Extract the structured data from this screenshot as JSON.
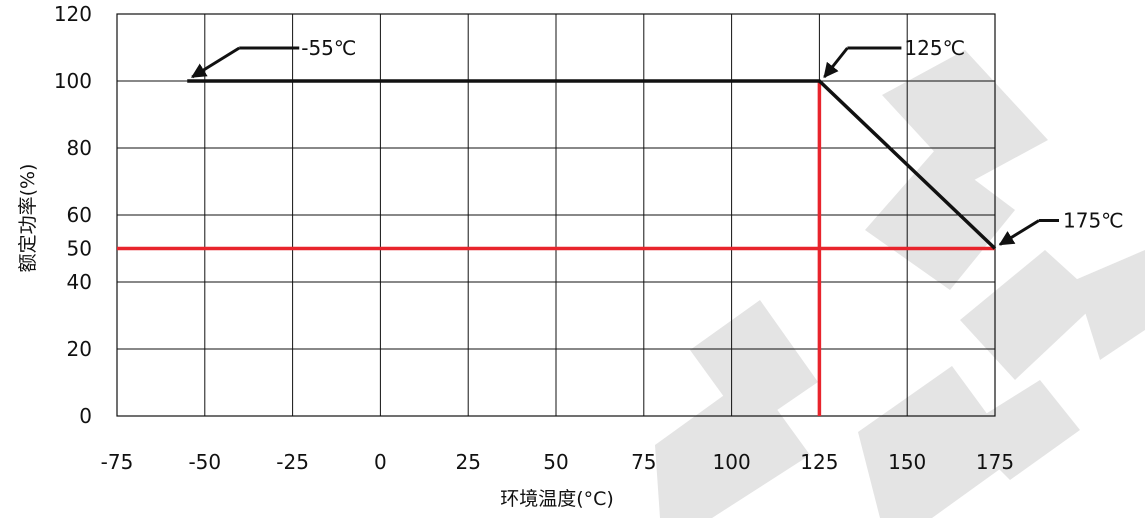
{
  "chart_data": {
    "type": "line",
    "xlabel": "环境温度(°C)",
    "ylabel": "额定功率(%)",
    "xlim": [
      -75,
      175
    ],
    "ylim": [
      0,
      120
    ],
    "x_ticks": [
      "-75",
      "-50",
      "-25",
      "0",
      "25",
      "50",
      "75",
      "100",
      "125",
      "150",
      "175"
    ],
    "y_ticks": [
      "0",
      "20",
      "40",
      "50",
      "60",
      "80",
      "100",
      "120"
    ],
    "x_tick_values": [
      -75,
      -50,
      -25,
      0,
      25,
      50,
      75,
      100,
      125,
      150,
      175
    ],
    "y_tick_values": [
      0,
      20,
      40,
      50,
      60,
      80,
      100,
      120
    ],
    "grid": true,
    "series": [
      {
        "x": [
          -55,
          125,
          175
        ],
        "y": [
          100,
          100,
          50
        ],
        "color": "#111111"
      }
    ],
    "reference_lines": [
      {
        "axis": "x",
        "value": 125,
        "color": "#e8242c"
      },
      {
        "axis": "y",
        "value": 50,
        "color": "#e8242c"
      }
    ],
    "annotations": [
      {
        "text": "-55℃",
        "x": -55,
        "y": 100
      },
      {
        "text": "125℃",
        "x": 125,
        "y": 100
      },
      {
        "text": "175℃",
        "x": 175,
        "y": 50
      }
    ],
    "watermark_color": "#e4e4e4"
  }
}
